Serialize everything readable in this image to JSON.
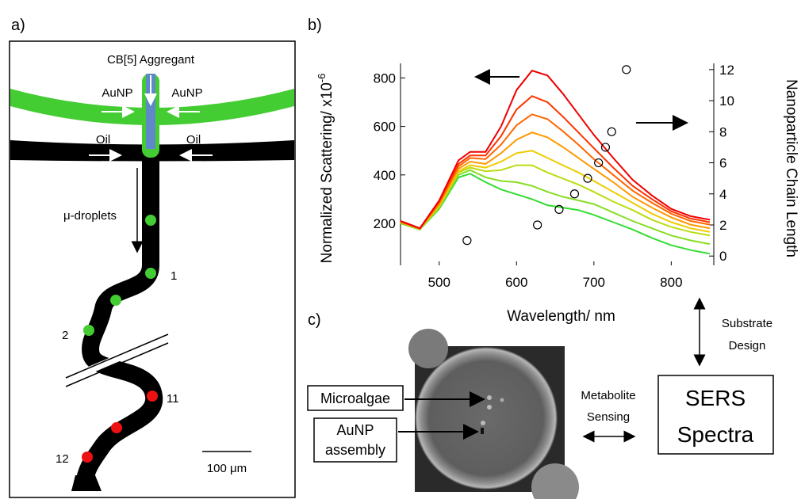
{
  "panel_a": {
    "label": "a)",
    "aggregant": "CB[5] Aggregant",
    "inlets": [
      "AuNP",
      "AuNP",
      "Oil",
      "Oil"
    ],
    "droplets": "μ-droplets",
    "positions": [
      "1",
      "2",
      "11",
      "12"
    ],
    "scale_bar": "100 μm"
  },
  "panel_b": {
    "label": "b)"
  },
  "panel_c": {
    "label": "c)",
    "microalgae": "Microalgae",
    "assembly": [
      "AuNP",
      "assembly"
    ],
    "sensing": [
      "Metabolite",
      "Sensing"
    ],
    "spectra": [
      "SERS",
      "Spectra"
    ],
    "design": [
      "Substrate",
      "Design"
    ]
  },
  "chart_data": {
    "type": "line",
    "xlabel": "Wavelength/ nm",
    "ylabel": "Normalized Scattering/ x10",
    "ylabel_exponent": "-6",
    "y2label": "Nanoparticle Chain Length",
    "xlim": [
      450,
      855
    ],
    "ylim": [
      27,
      860
    ],
    "y2lim": [
      -0.6,
      12.4
    ],
    "xticks": [
      500,
      600,
      700,
      800
    ],
    "yticks": [
      200,
      400,
      600,
      800
    ],
    "y2ticks": [
      0,
      2,
      4,
      6,
      8,
      10,
      12
    ],
    "x": [
      450,
      475,
      500,
      525,
      540,
      560,
      580,
      600,
      620,
      640,
      660,
      680,
      700,
      725,
      750,
      775,
      800,
      825,
      850
    ],
    "series": [
      {
        "color": "#33dd33",
        "values": [
          200,
          175,
          260,
          390,
          405,
          370,
          340,
          320,
          300,
          275,
          265,
          255,
          235,
          205,
          175,
          140,
          110,
          90,
          75
        ]
      },
      {
        "color": "#88dd22",
        "values": [
          200,
          175,
          265,
          400,
          420,
          390,
          375,
          370,
          355,
          330,
          310,
          295,
          280,
          245,
          210,
          180,
          150,
          130,
          115
        ]
      },
      {
        "color": "#bbdd11",
        "values": [
          205,
          178,
          270,
          410,
          430,
          415,
          420,
          440,
          440,
          410,
          385,
          360,
          330,
          290,
          255,
          215,
          185,
          165,
          150
        ]
      },
      {
        "color": "#eecc00",
        "values": [
          205,
          178,
          275,
          415,
          440,
          430,
          455,
          490,
          500,
          470,
          440,
          410,
          375,
          330,
          285,
          240,
          205,
          180,
          165
        ]
      },
      {
        "color": "#ff9900",
        "values": [
          205,
          178,
          280,
          425,
          455,
          445,
          490,
          545,
          575,
          555,
          515,
          470,
          425,
          370,
          310,
          265,
          225,
          195,
          180
        ]
      },
      {
        "color": "#ff6600",
        "values": [
          208,
          178,
          285,
          435,
          470,
          465,
          525,
          605,
          650,
          630,
          580,
          525,
          465,
          400,
          335,
          285,
          240,
          210,
          195
        ]
      },
      {
        "color": "#ff3300",
        "values": [
          210,
          180,
          290,
          445,
          480,
          480,
          560,
          670,
          725,
          700,
          640,
          575,
          510,
          430,
          355,
          300,
          250,
          220,
          205
        ]
      },
      {
        "color": "#ee0000",
        "values": [
          210,
          180,
          295,
          460,
          495,
          495,
          600,
          750,
          830,
          810,
          735,
          650,
          565,
          470,
          380,
          315,
          260,
          230,
          215
        ]
      }
    ],
    "scatter": {
      "axis": "y2",
      "x": [
        536,
        627,
        655,
        675,
        692,
        706,
        715,
        723,
        742
      ],
      "values": [
        1,
        2,
        3,
        4,
        5,
        6,
        7,
        8,
        12
      ]
    }
  }
}
